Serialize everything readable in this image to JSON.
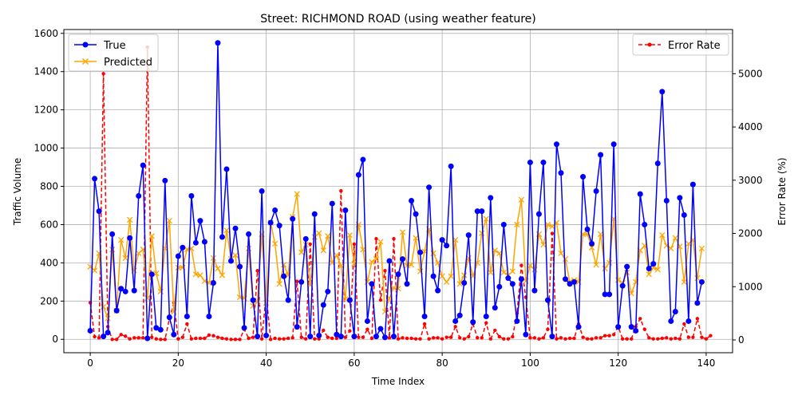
{
  "chart_data": {
    "type": "line",
    "title": "Street: RICHMOND ROAD (using weather feature)",
    "xlabel": "Time Index",
    "ylabel": "Traffic Volume",
    "y2label": "Error Rate (%)",
    "xlim": [
      -6,
      146
    ],
    "ylim": [
      -70,
      1620
    ],
    "y2lim": [
      -240,
      5830
    ],
    "xticks": [
      0,
      20,
      40,
      60,
      80,
      100,
      120,
      140
    ],
    "yticks": [
      0,
      200,
      400,
      600,
      800,
      1000,
      1200,
      1400,
      1600
    ],
    "y2ticks": [
      0,
      1000,
      2000,
      3000,
      4000,
      5000
    ],
    "grid": true,
    "legend_left": {
      "placement": "upper-left",
      "entries": [
        "True",
        "Predicted"
      ]
    },
    "legend_right": {
      "placement": "upper-right",
      "entries": [
        "Error Rate"
      ]
    },
    "colors": {
      "true": "#0000ff",
      "predicted": "#ffa500",
      "error": "#ff0000",
      "grid": "#b0b0b0"
    },
    "x_start": 0,
    "series": [
      {
        "name": "True",
        "axis": "left",
        "values": [
          45,
          840,
          670,
          15,
          35,
          550,
          150,
          265,
          250,
          530,
          255,
          750,
          910,
          5,
          340,
          60,
          50,
          830,
          115,
          25,
          435,
          480,
          120,
          750,
          505,
          620,
          510,
          120,
          295,
          1550,
          535,
          890,
          410,
          580,
          380,
          60,
          550,
          205,
          15,
          775,
          20,
          610,
          675,
          595,
          330,
          205,
          630,
          65,
          300,
          525,
          15,
          655,
          20,
          180,
          250,
          710,
          25,
          15,
          675,
          205,
          15,
          860,
          940,
          95,
          290,
          15,
          55,
          10,
          410,
          15,
          340,
          420,
          290,
          725,
          655,
          455,
          120,
          795,
          330,
          255,
          520,
          490,
          905,
          95,
          125,
          295,
          545,
          90,
          670,
          670,
          120,
          740,
          165,
          275,
          600,
          320,
          290,
          95,
          315,
          25,
          925,
          255,
          655,
          925,
          205,
          15,
          1020,
          870,
          315,
          290,
          300,
          65,
          850,
          575,
          500,
          775,
          965,
          235,
          235,
          1020,
          65,
          280,
          380,
          65,
          45,
          760,
          600,
          370,
          395,
          920,
          1295,
          725,
          95,
          145,
          740,
          650,
          95,
          810,
          190,
          300
        ]
      },
      {
        "name": "Predicted",
        "axis": "left",
        "values": [
          380,
          360,
          450,
          170,
          110,
          470,
          150,
          520,
          425,
          625,
          360,
          450,
          470,
          215,
          540,
          345,
          250,
          475,
          620,
          145,
          375,
          375,
          470,
          475,
          340,
          335,
          305,
          295,
          425,
          370,
          335,
          570,
          420,
          440,
          220,
          215,
          475,
          175,
          195,
          550,
          190,
          610,
          500,
          290,
          390,
          335,
          640,
          760,
          455,
          495,
          285,
          535,
          555,
          465,
          540,
          400,
          440,
          385,
          210,
          545,
          395,
          600,
          470,
          300,
          405,
          420,
          510,
          145,
          215,
          270,
          265,
          560,
          385,
          390,
          530,
          355,
          460,
          575,
          450,
          400,
          330,
          300,
          330,
          520,
          290,
          335,
          425,
          330,
          400,
          555,
          630,
          350,
          465,
          450,
          350,
          335,
          355,
          600,
          730,
          305,
          385,
          365,
          550,
          495,
          600,
          590,
          610,
          450,
          420,
          300,
          310,
          300,
          550,
          550,
          480,
          390,
          550,
          370,
          400,
          630,
          310,
          295,
          350,
          240,
          300,
          465,
          490,
          340,
          375,
          365,
          545,
          490,
          475,
          530,
          485,
          300,
          500,
          520,
          320,
          475
        ]
      },
      {
        "name": "Error Rate",
        "axis": "right",
        "values": [
          700,
          60,
          40,
          5000,
          250,
          10,
          10,
          100,
          70,
          20,
          40,
          40,
          40,
          5500,
          50,
          20,
          10,
          10,
          400,
          700,
          20,
          50,
          300,
          20,
          30,
          30,
          30,
          90,
          80,
          50,
          30,
          20,
          10,
          10,
          10,
          200,
          30,
          50,
          1300,
          20,
          850,
          10,
          30,
          20,
          20,
          30,
          40,
          1100,
          50,
          20,
          1800,
          20,
          20,
          180,
          50,
          30,
          30,
          2800,
          50,
          170,
          1800,
          50,
          50,
          200,
          30,
          1900,
          750,
          1300,
          40,
          1900,
          20,
          40,
          30,
          30,
          20,
          20,
          300,
          20,
          40,
          40,
          20,
          50,
          50,
          250,
          40,
          20,
          60,
          300,
          40,
          40,
          320,
          20,
          180,
          60,
          20,
          20,
          60,
          500,
          1400,
          800,
          40,
          40,
          20,
          40,
          200,
          2000,
          20,
          40,
          20,
          30,
          30,
          300,
          50,
          20,
          20,
          40,
          40,
          80,
          80,
          100,
          250,
          20,
          20,
          20,
          250,
          400,
          200,
          40,
          20,
          20,
          30,
          40,
          20,
          30,
          20,
          300,
          50,
          50,
          400,
          50,
          20,
          80
        ]
      }
    ]
  }
}
